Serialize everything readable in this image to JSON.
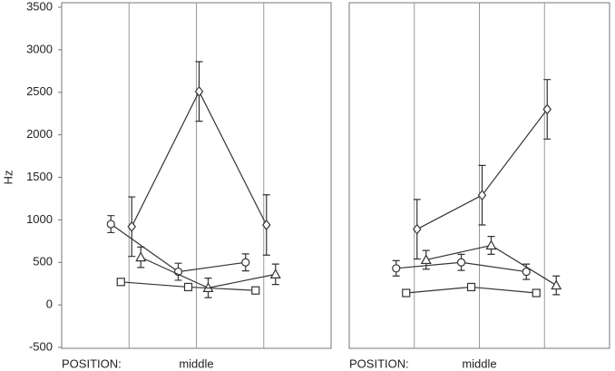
{
  "chart_data": [
    {
      "type": "line",
      "xlabel": "POSITION:",
      "ylabel": "Hz",
      "categories": [
        null,
        "middle",
        null
      ],
      "ylim": [
        -500,
        3500
      ],
      "yticks": [
        -500,
        0,
        500,
        1000,
        1500,
        2000,
        2500,
        3000,
        3500
      ],
      "series": [
        {
          "marker": "circle",
          "color": "#333333",
          "values": [
            950,
            390,
            500
          ],
          "errors": [
            100,
            100,
            100
          ]
        },
        {
          "marker": "diamond",
          "color": "#333333",
          "values": [
            920,
            2510,
            940
          ],
          "errors": [
            350,
            350,
            355
          ]
        },
        {
          "marker": "triangle",
          "color": "#333333",
          "values": [
            560,
            200,
            360
          ],
          "errors": [
            120,
            115,
            120
          ]
        },
        {
          "marker": "square",
          "color": "#333333",
          "values": [
            270,
            210,
            170
          ],
          "errors": [
            20,
            20,
            20
          ]
        }
      ]
    },
    {
      "type": "line",
      "xlabel": "POSITION:",
      "categories": [
        null,
        "middle",
        null
      ],
      "ylim": [
        -500,
        3500
      ],
      "series": [
        {
          "marker": "circle",
          "color": "#333333",
          "values": [
            430,
            500,
            390
          ],
          "errors": [
            90,
            95,
            90
          ]
        },
        {
          "marker": "diamond",
          "color": "#333333",
          "values": [
            890,
            1290,
            2300
          ],
          "errors": [
            350,
            350,
            350
          ]
        },
        {
          "marker": "triangle",
          "color": "#333333",
          "values": [
            530,
            700,
            230
          ],
          "errors": [
            110,
            105,
            110
          ]
        },
        {
          "marker": "square",
          "color": "#333333",
          "values": [
            140,
            210,
            140
          ],
          "errors": [
            20,
            20,
            20
          ]
        }
      ]
    }
  ]
}
